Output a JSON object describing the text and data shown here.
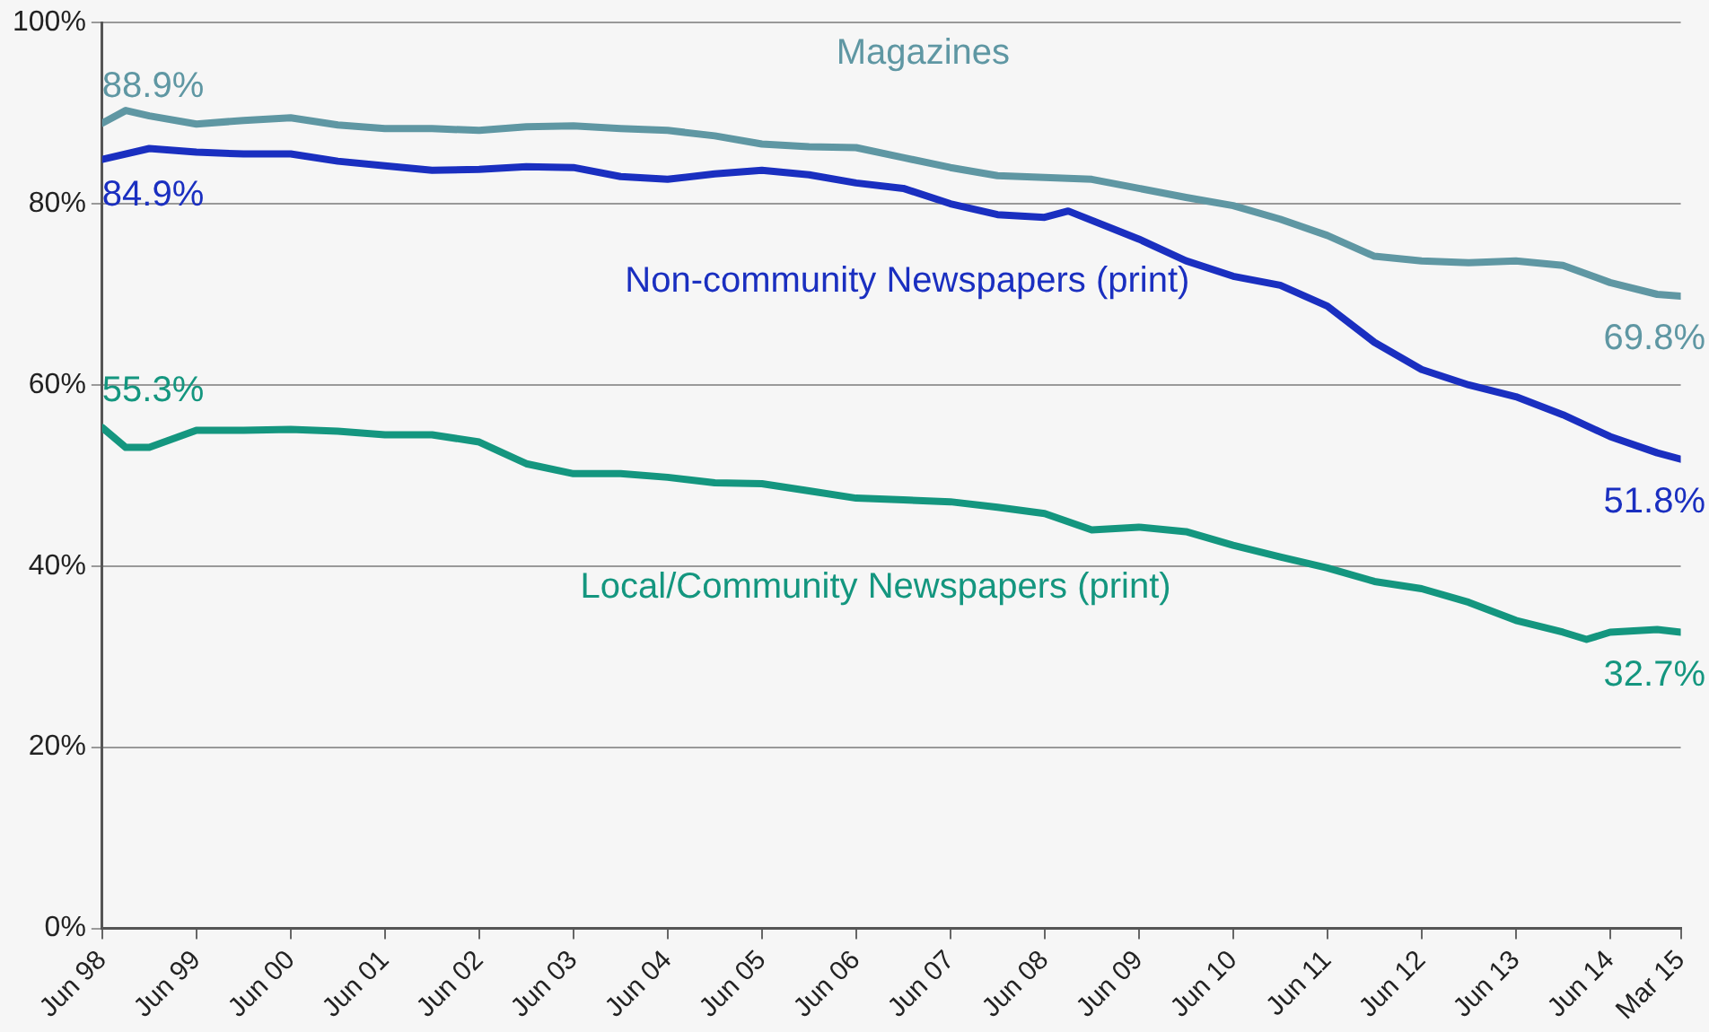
{
  "chart_data": {
    "type": "line",
    "xlim": [
      "1998-06",
      "2015-03"
    ],
    "xticks": [
      {
        "value": "1998-06",
        "label": "Jun 98"
      },
      {
        "value": "1999-06",
        "label": "Jun 99"
      },
      {
        "value": "2000-06",
        "label": "Jun 00"
      },
      {
        "value": "2001-06",
        "label": "Jun 01"
      },
      {
        "value": "2002-06",
        "label": "Jun 02"
      },
      {
        "value": "2003-06",
        "label": "Jun 03"
      },
      {
        "value": "2004-06",
        "label": "Jun 04"
      },
      {
        "value": "2005-06",
        "label": "Jun 05"
      },
      {
        "value": "2006-06",
        "label": "Jun 06"
      },
      {
        "value": "2007-06",
        "label": "Jun 07"
      },
      {
        "value": "2008-06",
        "label": "Jun 08"
      },
      {
        "value": "2009-06",
        "label": "Jun 09"
      },
      {
        "value": "2010-06",
        "label": "Jun 10"
      },
      {
        "value": "2011-06",
        "label": "Jun 11"
      },
      {
        "value": "2012-06",
        "label": "Jun 12"
      },
      {
        "value": "2013-06",
        "label": "Jun 13"
      },
      {
        "value": "2014-06",
        "label": "Jun 14"
      },
      {
        "value": "2015-03",
        "label": "Mar 15"
      }
    ],
    "ylim": [
      0,
      100
    ],
    "yticks": [
      {
        "value": 0,
        "label": "0%"
      },
      {
        "value": 20,
        "label": "20%"
      },
      {
        "value": 40,
        "label": "40%"
      },
      {
        "value": 60,
        "label": "60%"
      },
      {
        "value": 80,
        "label": "80%"
      },
      {
        "value": 100,
        "label": "100%"
      }
    ],
    "grid": "y",
    "legend": false,
    "marker": "none",
    "line_style": "solid",
    "series": [
      {
        "name": "Magazines",
        "color": "#5f97a3",
        "x": [
          "1998-06",
          "1998-09",
          "1998-12",
          "1999-06",
          "1999-12",
          "2000-06",
          "2000-12",
          "2001-06",
          "2001-12",
          "2002-06",
          "2002-12",
          "2003-06",
          "2003-12",
          "2004-06",
          "2004-12",
          "2005-06",
          "2005-12",
          "2006-06",
          "2006-12",
          "2007-06",
          "2007-12",
          "2008-06",
          "2008-12",
          "2009-06",
          "2009-12",
          "2010-06",
          "2010-12",
          "2011-06",
          "2011-12",
          "2012-06",
          "2012-12",
          "2013-06",
          "2013-12",
          "2014-06",
          "2014-12",
          "2015-03"
        ],
        "values": [
          88.9,
          90.3,
          89.7,
          88.8,
          89.2,
          89.5,
          88.7,
          88.3,
          88.3,
          88.1,
          88.5,
          88.6,
          88.3,
          88.1,
          87.5,
          86.6,
          86.3,
          86.2,
          85.1,
          84.0,
          83.1,
          82.9,
          82.7,
          81.7,
          80.7,
          79.8,
          78.3,
          76.5,
          74.2,
          73.7,
          73.5,
          73.7,
          73.2,
          71.3,
          70.0,
          69.8
        ],
        "value_labels": [
          "88.9%",
          null,
          null,
          null,
          null,
          null,
          null,
          null,
          null,
          null,
          null,
          null,
          null,
          null,
          null,
          null,
          null,
          null,
          null,
          null,
          null,
          null,
          null,
          null,
          null,
          null,
          null,
          null,
          null,
          null,
          null,
          null,
          null,
          null,
          null,
          "69.8%"
        ]
      },
      {
        "name": "Non-community Newspapers (print)",
        "color": "#1a2fc0",
        "x": [
          "1998-06",
          "1998-12",
          "1999-06",
          "1999-12",
          "2000-06",
          "2000-12",
          "2001-06",
          "2001-12",
          "2002-06",
          "2002-12",
          "2003-06",
          "2003-12",
          "2004-06",
          "2004-12",
          "2005-06",
          "2005-12",
          "2006-06",
          "2006-12",
          "2007-06",
          "2007-12",
          "2008-06",
          "2008-09",
          "2009-06",
          "2009-12",
          "2010-06",
          "2010-12",
          "2011-06",
          "2011-12",
          "2012-06",
          "2012-12",
          "2013-06",
          "2013-12",
          "2014-06",
          "2014-12",
          "2015-03"
        ],
        "values": [
          84.9,
          86.1,
          85.7,
          85.5,
          85.5,
          84.7,
          84.2,
          83.7,
          83.8,
          84.1,
          84.0,
          83.0,
          82.7,
          83.3,
          83.7,
          83.2,
          82.3,
          81.7,
          80.0,
          78.8,
          78.5,
          79.2,
          76.1,
          73.7,
          72.0,
          71.0,
          68.7,
          64.7,
          61.7,
          60.0,
          58.7,
          56.7,
          54.3,
          52.5,
          51.8
        ],
        "value_labels": [
          "84.9%",
          null,
          null,
          null,
          null,
          null,
          null,
          null,
          null,
          null,
          null,
          null,
          null,
          null,
          null,
          null,
          null,
          null,
          null,
          null,
          null,
          null,
          null,
          null,
          null,
          null,
          null,
          null,
          null,
          null,
          null,
          null,
          null,
          null,
          "51.8%"
        ]
      },
      {
        "name": "Local/Community Newspapers (print)",
        "color": "#14967f",
        "x": [
          "1998-06",
          "1998-09",
          "1998-12",
          "1999-06",
          "1999-12",
          "2000-06",
          "2000-12",
          "2001-06",
          "2001-12",
          "2002-06",
          "2002-12",
          "2003-06",
          "2003-12",
          "2004-06",
          "2004-12",
          "2005-06",
          "2005-12",
          "2006-06",
          "2006-12",
          "2007-06",
          "2007-12",
          "2008-06",
          "2008-12",
          "2009-06",
          "2009-12",
          "2010-06",
          "2010-12",
          "2011-06",
          "2011-12",
          "2012-06",
          "2012-12",
          "2013-06",
          "2013-12",
          "2014-03",
          "2014-06",
          "2014-12",
          "2015-03"
        ],
        "values": [
          55.3,
          53.1,
          53.1,
          55.0,
          55.0,
          55.1,
          54.9,
          54.5,
          54.5,
          53.7,
          51.3,
          50.2,
          50.2,
          49.8,
          49.2,
          49.1,
          48.3,
          47.5,
          47.3,
          47.1,
          46.5,
          45.8,
          44.0,
          44.3,
          43.8,
          42.3,
          41.0,
          39.8,
          38.3,
          37.5,
          36.0,
          34.0,
          32.7,
          31.9,
          32.7,
          33.0,
          32.7
        ],
        "value_labels": [
          "55.3%",
          null,
          null,
          null,
          null,
          null,
          null,
          null,
          null,
          null,
          null,
          null,
          null,
          null,
          null,
          null,
          null,
          null,
          null,
          null,
          null,
          null,
          null,
          null,
          null,
          null,
          null,
          null,
          null,
          null,
          null,
          null,
          null,
          null,
          null,
          null,
          "32.7%"
        ]
      }
    ]
  }
}
